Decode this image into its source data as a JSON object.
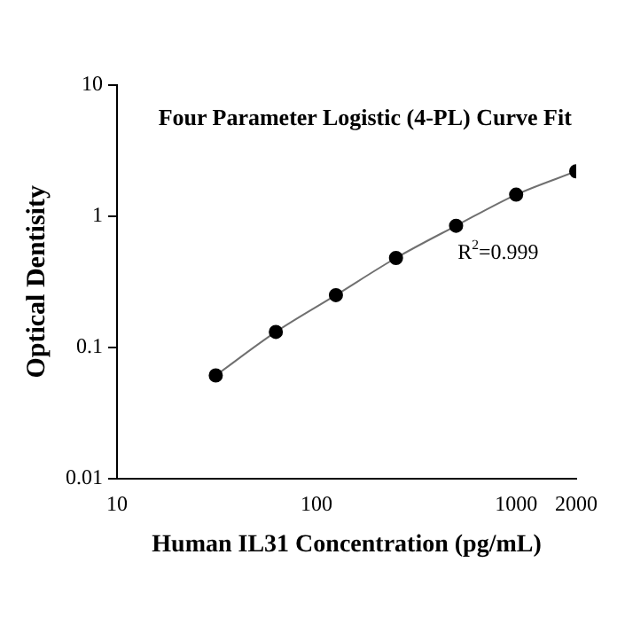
{
  "chart_data": {
    "type": "scatter",
    "title": "Four Parameter Logistic (4-PL) Curve Fit",
    "xlabel": "Human IL31 Concentration (pg/mL)",
    "ylabel": "Optical Dentisity",
    "annotations": [
      "R$^{2}$=0.999"
    ],
    "log": "xy",
    "grid": false,
    "legend": false,
    "marker": "circle",
    "xlim": [
      10,
      2000
    ],
    "xticks": [
      10,
      100,
      1000,
      2000
    ],
    "ylim": [
      0.01,
      10
    ],
    "yticks": [
      0.01,
      0.1,
      1,
      10
    ],
    "series": [
      {
        "type": "line",
        "color": "#707070",
        "marker": "none",
        "x": [
          31.25,
          62.5,
          125,
          250,
          500,
          1000,
          2000
        ],
        "values": [
          0.061,
          0.131,
          0.25,
          0.48,
          0.845,
          1.46,
          2.2
        ]
      },
      {
        "type": "scatter",
        "color": "#000000",
        "x": [
          31.25,
          62.5,
          125,
          250,
          500,
          1000,
          2000
        ],
        "values": [
          0.061,
          0.131,
          0.25,
          0.48,
          0.845,
          1.46,
          2.2
        ]
      }
    ]
  }
}
